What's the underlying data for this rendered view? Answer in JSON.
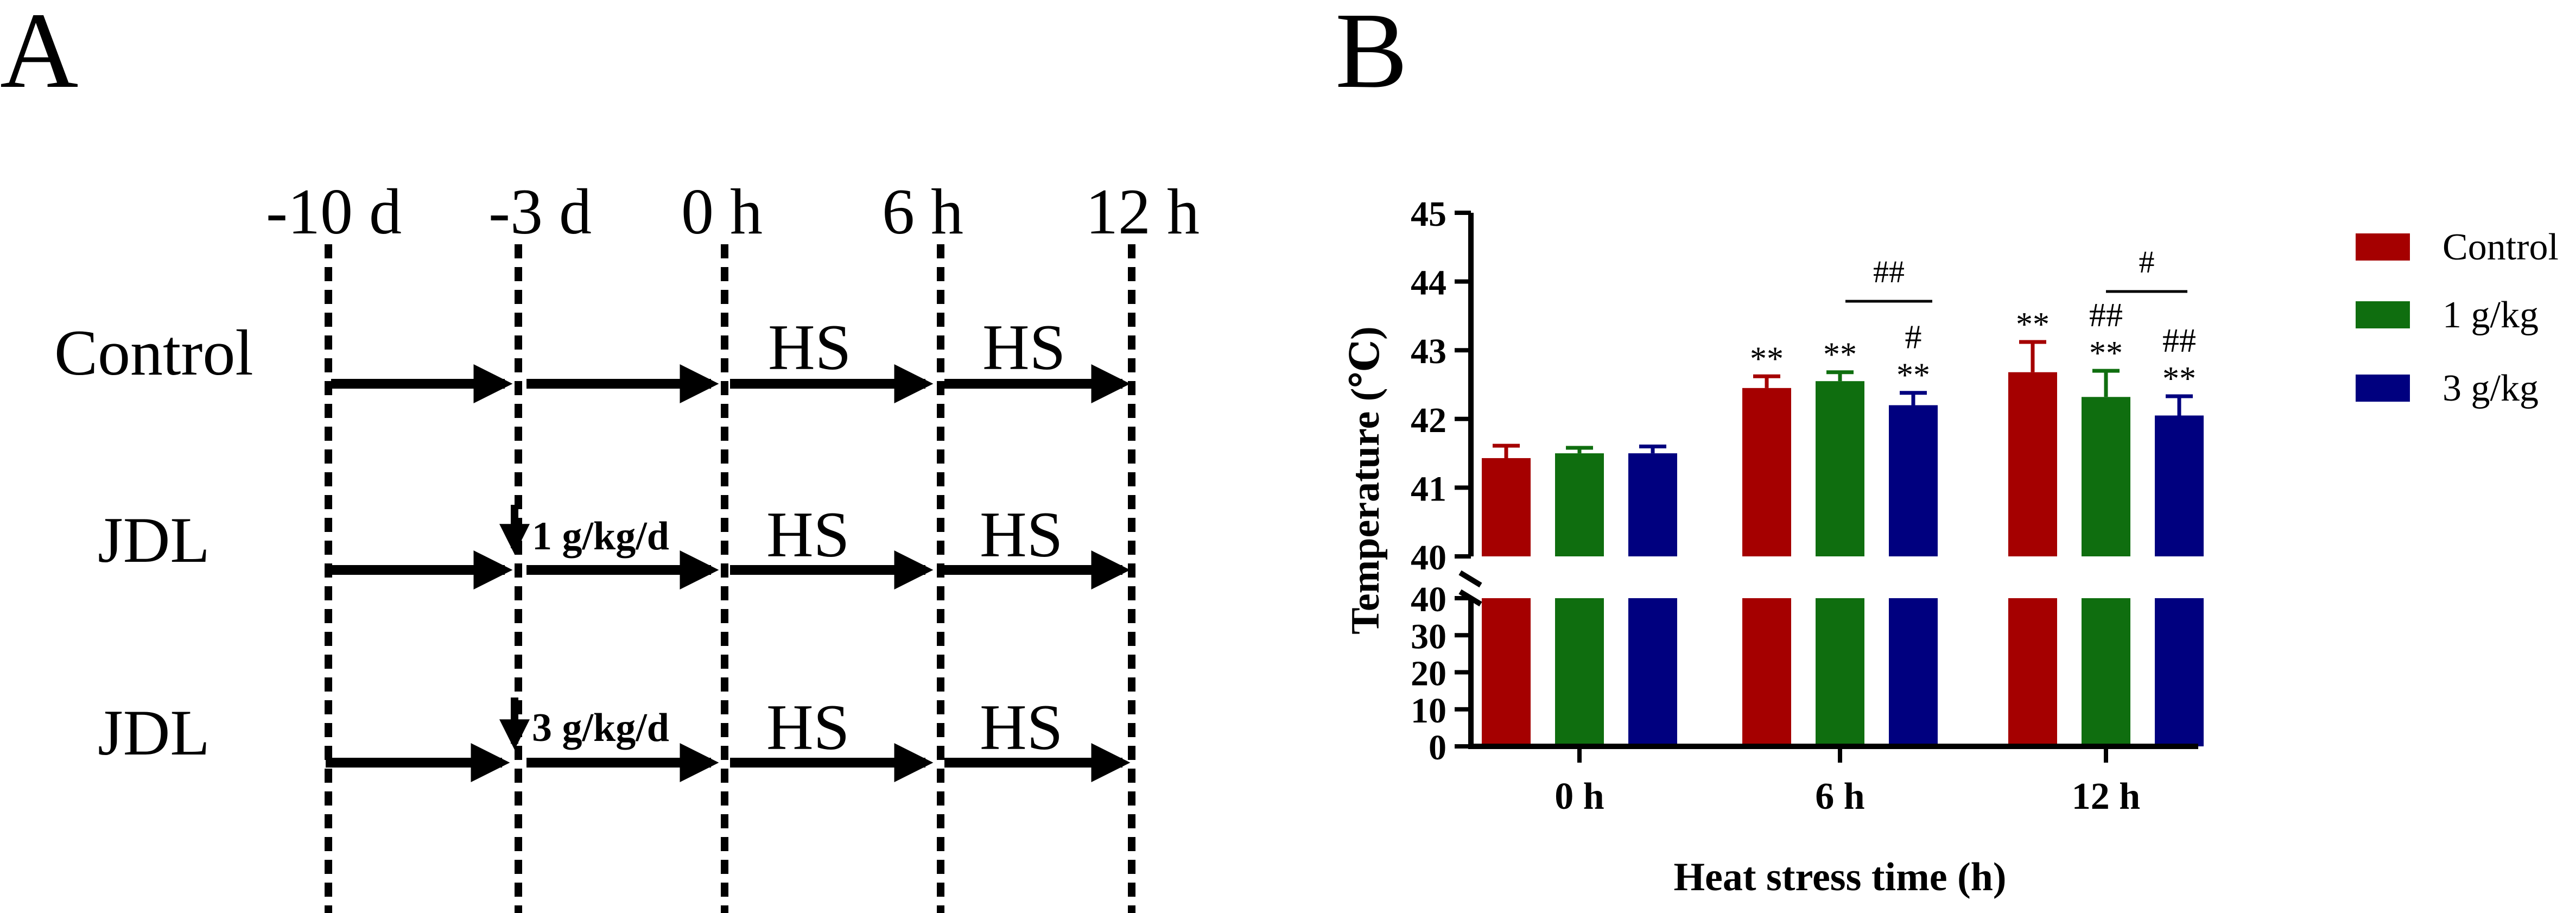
{
  "panel_a": {
    "letter": "A",
    "time_labels": [
      "-10 d",
      "-3 d",
      "0 h",
      "6 h",
      "12 h"
    ],
    "rows": [
      {
        "name": "Control",
        "dose": "",
        "hs1": "HS",
        "hs2": "HS"
      },
      {
        "name": "JDL",
        "dose": "1 g/kg/d",
        "hs1": "HS",
        "hs2": "HS"
      },
      {
        "name": "JDL",
        "dose": "3 g/kg/d",
        "hs1": "HS",
        "hs2": "HS"
      }
    ]
  },
  "panel_b": {
    "letter": "B",
    "bracket_6h": "##",
    "bracket_12h": "#"
  },
  "chart_data": {
    "type": "bar",
    "title": "",
    "xlabel": "Heat stress time (h)",
    "ylabel": "Temperature (℃)",
    "categories": [
      "0 h",
      "6 h",
      "12 h"
    ],
    "axis_break": {
      "lower_range": [
        0,
        40
      ],
      "upper_range": [
        40,
        45
      ],
      "lower_ticks": [
        "0",
        "10",
        "20",
        "30",
        "40"
      ],
      "upper_ticks": [
        "40",
        "41",
        "42",
        "43",
        "44",
        "45"
      ]
    },
    "ylim": [
      0,
      45
    ],
    "legend_position": "right",
    "series": [
      {
        "name": "Control",
        "color": "#a50000",
        "values": [
          41.43,
          42.45,
          42.68
        ],
        "errors": [
          0.18,
          0.17,
          0.44
        ],
        "annotations": [
          "",
          "**",
          "**"
        ]
      },
      {
        "name": "1 g/kg",
        "color": "#0f6e0f",
        "values": [
          41.5,
          42.55,
          42.32
        ],
        "errors": [
          0.08,
          0.13,
          0.38
        ],
        "annotations": [
          "",
          "**",
          "##\n**"
        ]
      },
      {
        "name": "3 g/kg",
        "color": "#00007f",
        "values": [
          41.5,
          42.2,
          42.05
        ],
        "errors": [
          0.1,
          0.18,
          0.28
        ],
        "annotations": [
          "",
          "#\n**",
          "##\n**"
        ]
      }
    ]
  }
}
